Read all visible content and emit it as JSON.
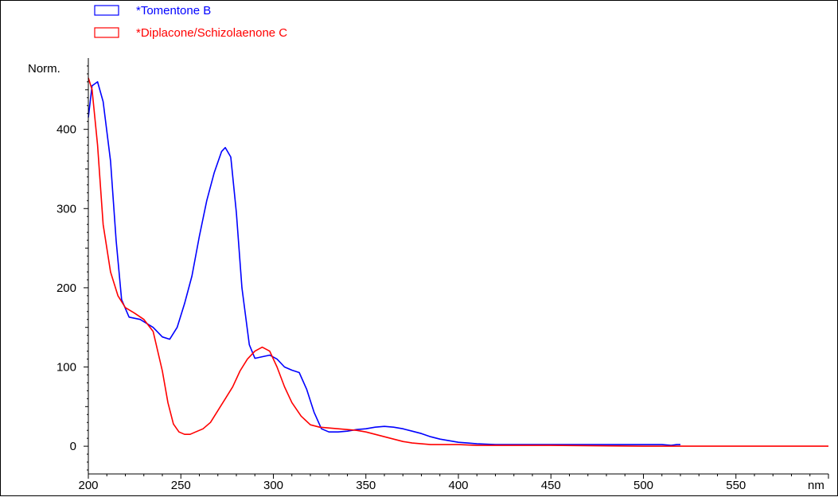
{
  "chart_data": {
    "type": "line",
    "title": "",
    "xlabel": "nm",
    "ylabel": "Norm.",
    "xlim": [
      200,
      600
    ],
    "ylim": [
      -35,
      490
    ],
    "x_ticks": [
      200,
      250,
      300,
      350,
      400,
      450,
      500,
      550
    ],
    "x_tick_labels": [
      "200",
      "250",
      "300",
      "350",
      "400",
      "450",
      "500",
      "550"
    ],
    "y_ticks": [
      0,
      100,
      200,
      300,
      400
    ],
    "y_tick_labels": [
      "0",
      "100",
      "200",
      "300",
      "400"
    ],
    "grid": false,
    "legend_position": "top-left",
    "series": [
      {
        "name": "*Tomentone B",
        "color": "#0000ff",
        "x": [
          200,
          202,
          205,
          208,
          212,
          215,
          218,
          222,
          228,
          235,
          240,
          244,
          248,
          252,
          256,
          260,
          264,
          268,
          272,
          274,
          277,
          280,
          283,
          287,
          290,
          294,
          298,
          302,
          306,
          310,
          314,
          318,
          322,
          326,
          330,
          335,
          340,
          345,
          350,
          355,
          360,
          365,
          370,
          375,
          380,
          385,
          390,
          395,
          400,
          405,
          410,
          420,
          430,
          440,
          450,
          460,
          470,
          480,
          490,
          500,
          510,
          515,
          518,
          520
        ],
        "y": [
          415,
          455,
          460,
          435,
          360,
          260,
          185,
          163,
          160,
          150,
          138,
          135,
          150,
          180,
          215,
          265,
          310,
          345,
          372,
          377,
          365,
          295,
          200,
          128,
          111,
          113,
          115,
          110,
          100,
          96,
          93,
          72,
          43,
          22,
          18,
          18,
          19,
          21,
          22,
          24,
          25,
          24,
          22,
          19,
          16,
          12,
          9,
          7,
          5,
          4,
          3,
          2,
          2,
          2,
          2,
          2,
          2,
          2,
          2,
          2,
          2,
          1,
          2,
          2
        ]
      },
      {
        "name": "*Diplacone/Schizolaenone C",
        "color": "#ff0000",
        "x": [
          200,
          202,
          205,
          208,
          212,
          216,
          220,
          225,
          230,
          235,
          240,
          243,
          246,
          249,
          252,
          255,
          258,
          262,
          266,
          270,
          274,
          278,
          282,
          286,
          290,
          294,
          298,
          302,
          306,
          310,
          315,
          320,
          325,
          330,
          335,
          340,
          345,
          350,
          355,
          360,
          365,
          370,
          375,
          380,
          385,
          390,
          400,
          410,
          420,
          450,
          500,
          550,
          600
        ],
        "y": [
          465,
          450,
          380,
          280,
          220,
          190,
          175,
          168,
          160,
          145,
          95,
          55,
          28,
          18,
          15,
          15,
          18,
          22,
          30,
          45,
          60,
          75,
          95,
          110,
          120,
          125,
          120,
          100,
          75,
          55,
          38,
          27,
          24,
          23,
          22,
          21,
          20,
          18,
          15,
          12,
          9,
          6,
          4,
          3,
          2,
          2,
          2,
          1,
          1,
          1,
          0,
          0,
          0
        ]
      }
    ]
  }
}
